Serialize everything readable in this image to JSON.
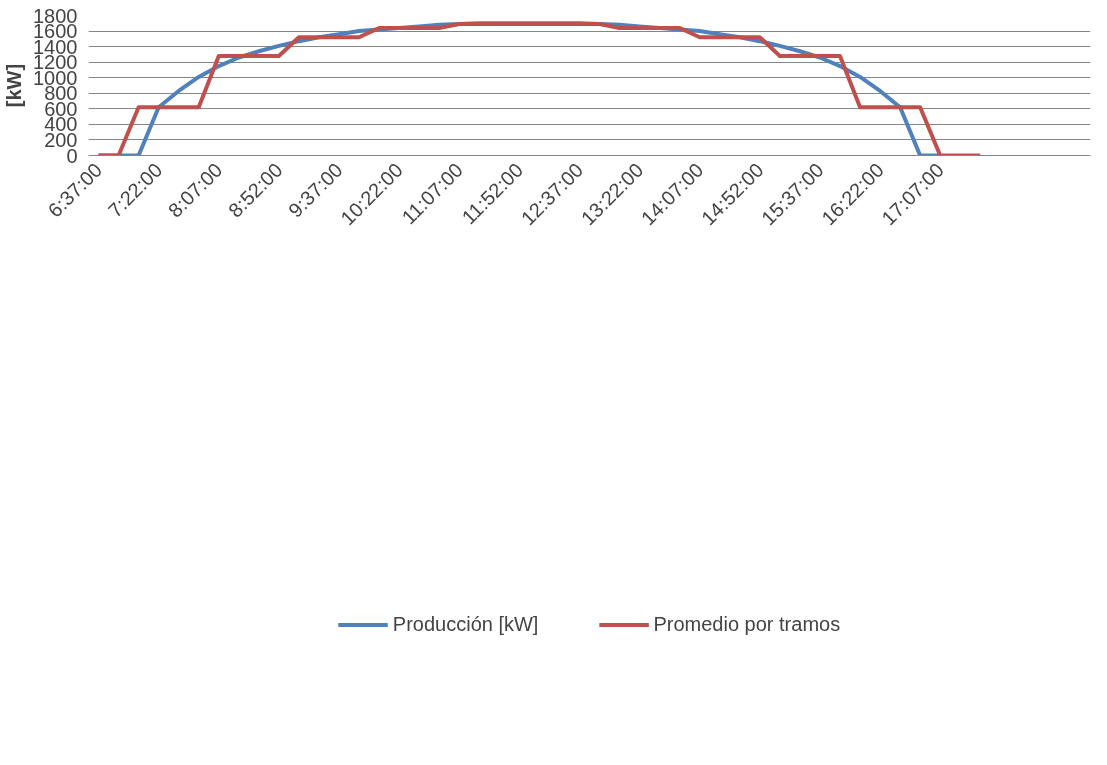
{
  "chart_data": {
    "type": "line",
    "ylabel": "[kW]",
    "categories": [
      "6:37:00",
      null,
      null,
      "7:22:00",
      null,
      null,
      "8:07:00",
      null,
      null,
      "8:52:00",
      null,
      null,
      "9:37:00",
      null,
      null,
      "10:22:00",
      null,
      null,
      "11:07:00",
      null,
      null,
      "11:52:00",
      null,
      null,
      "12:37:00",
      null,
      null,
      "13:22:00",
      null,
      null,
      "14:07:00",
      null,
      null,
      "14:52:00",
      null,
      null,
      "15:37:00",
      null,
      null,
      "16:22:00",
      null,
      null,
      "17:07:00",
      null,
      null,
      null,
      null,
      null,
      null,
      null
    ],
    "series": [
      {
        "name": "Producción [kW]",
        "color": "#4f81bd",
        "values": [
          0,
          0,
          0,
          620,
          830,
          1010,
          1150,
          1260,
          1340,
          1410,
          1470,
          1520,
          1560,
          1600,
          1620,
          1640,
          1660,
          1680,
          1690,
          1700,
          1700,
          1700,
          1700,
          1700,
          1700,
          1690,
          1680,
          1660,
          1640,
          1620,
          1600,
          1560,
          1520,
          1470,
          1410,
          1340,
          1260,
          1150,
          1010,
          830,
          620,
          0,
          0,
          null,
          null,
          null,
          null,
          null,
          null,
          null
        ]
      },
      {
        "name": "Promedio por tramos",
        "color": "#c0504d",
        "values": [
          0,
          0,
          620,
          620,
          620,
          620,
          1280,
          1280,
          1280,
          1280,
          1520,
          1520,
          1520,
          1520,
          1640,
          1640,
          1640,
          1640,
          1690,
          1690,
          1690,
          1690,
          1690,
          1690,
          1690,
          1690,
          1640,
          1640,
          1640,
          1640,
          1520,
          1520,
          1520,
          1520,
          1280,
          1280,
          1280,
          1280,
          620,
          620,
          620,
          620,
          0,
          0,
          0,
          null,
          null,
          null,
          null,
          null
        ]
      }
    ],
    "ylim": [
      0,
      1800
    ],
    "yticks": [
      0,
      200,
      400,
      600,
      800,
      1000,
      1200,
      1400,
      1600,
      1800
    ],
    "grid": "y",
    "legend": "bottom",
    "line_style": "solid",
    "marker": "none"
  }
}
